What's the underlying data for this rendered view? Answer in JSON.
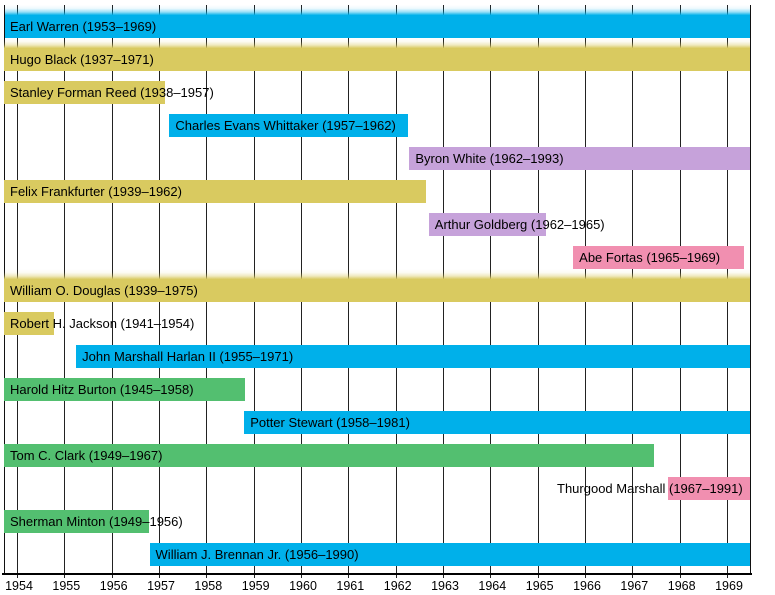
{
  "chart_data": {
    "type": "bar",
    "variant": "horizontal-timeline",
    "title": "",
    "xlabel": "",
    "ylabel": "",
    "grid": true,
    "x_domain": [
      1953.725,
      1969.49
    ],
    "x_ticks": [
      "1954",
      "1955",
      "1956",
      "1957",
      "1958",
      "1959",
      "1960",
      "1961",
      "1962",
      "1963",
      "1964",
      "1965",
      "1966",
      "1967",
      "1968",
      "1969"
    ],
    "palette": {
      "blue": "#00B0EA",
      "yellow": "#D9CA60",
      "green": "#53BF70",
      "purple": "#C6A2DA",
      "pink": "#F18FB0"
    },
    "bars": [
      {
        "label": "Earl Warren (1953–1969)",
        "start": 1953.74,
        "end": 1969.48,
        "color": "blue",
        "fade_top": true
      },
      {
        "label": "Hugo Black (1937–1971)",
        "start": 1937.0,
        "end": 1971.0,
        "color": "yellow",
        "fade_top": true
      },
      {
        "label": "Stanley Forman Reed (1938–1957)",
        "start": 1938.0,
        "end": 1957.12,
        "color": "yellow",
        "fade_top": false
      },
      {
        "label": "Charles Evans Whittaker (1957–1962)",
        "start": 1957.22,
        "end": 1962.27,
        "color": "blue",
        "fade_top": false
      },
      {
        "label": "Byron White (1962–1993)",
        "start": 1962.29,
        "end": 1993.0,
        "color": "purple",
        "fade_top": false
      },
      {
        "label": "Felix Frankfurter (1939–1962)",
        "start": 1939.0,
        "end": 1962.64,
        "color": "yellow",
        "fade_top": false
      },
      {
        "label": "Arthur Goldberg (1962–1965)",
        "start": 1962.7,
        "end": 1965.17,
        "color": "purple",
        "fade_top": false
      },
      {
        "label": "Abe Fortas (1965–1969)",
        "start": 1965.75,
        "end": 1969.36,
        "color": "pink",
        "fade_top": false
      },
      {
        "label": "William O. Douglas (1939–1975)",
        "start": 1939.0,
        "end": 1975.0,
        "color": "yellow",
        "fade_top": true
      },
      {
        "label": "Robert H. Jackson (1941–1954)",
        "start": 1941.0,
        "end": 1954.78,
        "color": "yellow",
        "fade_top": false
      },
      {
        "label": "John Marshall Harlan II (1955–1971)",
        "start": 1955.25,
        "end": 1971.0,
        "color": "blue",
        "fade_top": false
      },
      {
        "label": "Harold Hitz Burton (1945–1958)",
        "start": 1945.0,
        "end": 1958.82,
        "color": "green",
        "fade_top": false
      },
      {
        "label": "Potter Stewart (1958–1981)",
        "start": 1958.8,
        "end": 1981.0,
        "color": "blue",
        "fade_top": false
      },
      {
        "label": "Tom C. Clark (1949–1967)",
        "start": 1949.0,
        "end": 1967.46,
        "color": "green",
        "fade_top": false
      },
      {
        "label": "Thurgood Marshall (1967–1991)",
        "start": 1967.76,
        "end": 1991.0,
        "color": "pink",
        "fade_top": false,
        "label_x_override": 557
      },
      {
        "label": "Sherman Minton (1949–1956)",
        "start": 1949.0,
        "end": 1956.79,
        "color": "green",
        "fade_top": false
      },
      {
        "label": "William J. Brennan Jr. (1956–1990)",
        "start": 1956.8,
        "end": 1990.0,
        "color": "blue",
        "fade_top": false
      }
    ]
  },
  "axis_style": {
    "grid_color": "#222222",
    "axis_color": "#000000",
    "text_color": "#000000"
  }
}
